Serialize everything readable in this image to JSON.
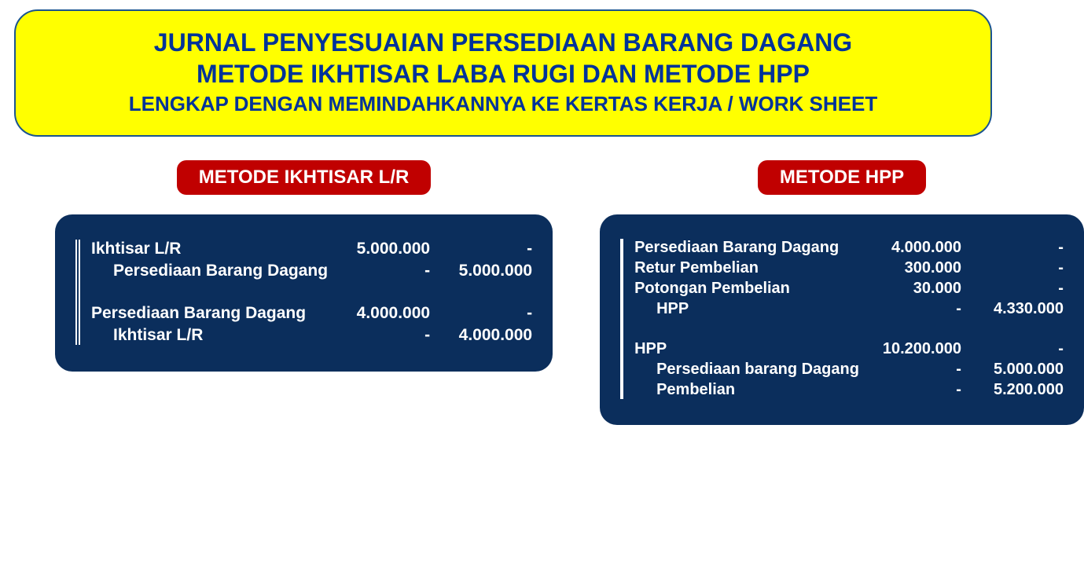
{
  "header": {
    "line1": "JURNAL PENYESUAIAN PERSEDIAAN BARANG DAGANG",
    "line2": "METODE IKHTISAR LABA RUGI DAN METODE HPP",
    "line3": "LENGKAP DENGAN MEMINDAHKANNYA KE KERTAS KERJA / WORK SHEET"
  },
  "colors": {
    "header_bg": "#ffff00",
    "header_border": "#1a5490",
    "header_text": "#003399",
    "pill_bg": "#c00000",
    "pill_text": "#ffffff",
    "panel_bg": "#0b2e5c",
    "panel_text": "#ffffff"
  },
  "left": {
    "title": "METODE IKHTISAR L/R",
    "entries": [
      {
        "account": "Ikhtisar L/R",
        "debit": "5.000.000",
        "credit": "-",
        "indent": false
      },
      {
        "account": "Persediaan Barang Dagang",
        "debit": "-",
        "credit": "5.000.000",
        "indent": true
      },
      {
        "gap": true
      },
      {
        "account": "Persediaan Barang Dagang",
        "debit": "4.000.000",
        "credit": "-",
        "indent": false
      },
      {
        "account": "Ikhtisar L/R",
        "debit": "-",
        "credit": "4.000.000",
        "indent": true
      }
    ]
  },
  "right": {
    "title": "METODE HPP",
    "entries": [
      {
        "account": "Persediaan Barang Dagang",
        "debit": "4.000.000",
        "credit": "-",
        "indent": false
      },
      {
        "account": "Retur Pembelian",
        "debit": "300.000",
        "credit": "-",
        "indent": false
      },
      {
        "account": "Potongan Pembelian",
        "debit": "30.000",
        "credit": "-",
        "indent": false
      },
      {
        "account": "HPP",
        "debit": "-",
        "credit": "4.330.000",
        "indent": true
      },
      {
        "gap": true
      },
      {
        "account": "HPP",
        "debit": "10.200.000",
        "credit": "-",
        "indent": false
      },
      {
        "account": "Persediaan barang Dagang",
        "debit": "-",
        "credit": "5.000.000",
        "indent": true
      },
      {
        "account": "Pembelian",
        "debit": "-",
        "credit": "5.200.000",
        "indent": true
      }
    ]
  }
}
